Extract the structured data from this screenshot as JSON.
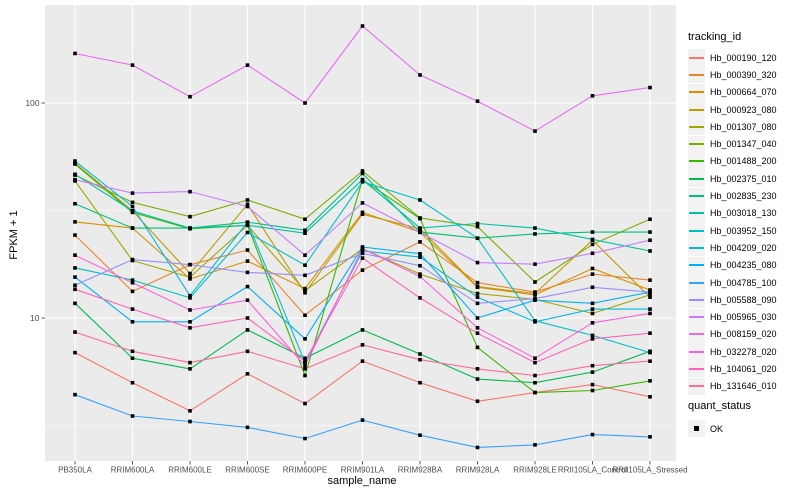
{
  "figure": {
    "background": "#FFFFFF",
    "panel_fill": "#EBEBEB",
    "grid_color": "#FFFFFF",
    "axis_text_color": "#4D4D4D",
    "tick_color": "#333333",
    "point_color": "#000000"
  },
  "legend": {
    "tracking_title": "tracking_id",
    "quant_title": "quant_status",
    "quant_items": [
      {
        "label": "OK",
        "marker": "filled-black-square"
      }
    ]
  },
  "chart_data": {
    "type": "line",
    "title": "",
    "xlabel": "sample_name",
    "ylabel": "FPKM + 1",
    "y_scale": "log10",
    "y_tick_labels": [
      "100",
      "10"
    ],
    "y_tick_values": [
      100,
      10
    ],
    "y_minor_values": [
      31.62,
      3.162
    ],
    "ylim": [
      2.2,
      290
    ],
    "grid": true,
    "legend_position": "right",
    "marker": "filled-square-black",
    "categories": [
      "PB350LA",
      "RRIM600LA",
      "RRIM600LE",
      "RRIM600SE",
      "RRIM600PE",
      "RRIM901LA",
      "RRIM928BA",
      "RRIM928LA",
      "RRIM928LE",
      "RRII105LA_Control",
      "RRII105LA_Stressed"
    ],
    "series": [
      {
        "name": "Hb_000190_120",
        "color": "#F8766D",
        "values": [
          6.9,
          5.0,
          3.7,
          5.5,
          4.0,
          6.3,
          5.0,
          4.1,
          4.5,
          4.9,
          4.3
        ]
      },
      {
        "name": "Hb_000390_320",
        "color": "#EA8331",
        "values": [
          24.3,
          13.3,
          17.7,
          20.7,
          10.3,
          16.7,
          22.6,
          14.6,
          13.2,
          16.0,
          15.0
        ]
      },
      {
        "name": "Hb_000664_070",
        "color": "#D89000",
        "values": [
          28.0,
          26.2,
          15.2,
          18.4,
          13.7,
          31.0,
          25.1,
          13.9,
          12.8,
          17.0,
          13.5
        ]
      },
      {
        "name": "Hb_000923_080",
        "color": "#C09B00",
        "values": [
          52.6,
          31.5,
          16.1,
          33.8,
          13.1,
          30.4,
          26.0,
          14.0,
          13.0,
          23.0,
          12.5
        ]
      },
      {
        "name": "Hb_001307_080",
        "color": "#A3A500",
        "values": [
          43.4,
          18.5,
          15.5,
          27.0,
          13.4,
          21.0,
          16.0,
          13.0,
          12.2,
          10.5,
          12.8
        ]
      },
      {
        "name": "Hb_001347_040",
        "color": "#7CAE00",
        "values": [
          46.2,
          34.5,
          29.6,
          35.4,
          28.8,
          48.3,
          29.2,
          26.6,
          14.7,
          22.0,
          28.8
        ]
      },
      {
        "name": "Hb_001488_200",
        "color": "#39B600",
        "values": [
          52.0,
          31.0,
          26.0,
          27.0,
          5.4,
          44.0,
          29.0,
          7.3,
          4.5,
          4.6,
          5.1
        ]
      },
      {
        "name": "Hb_002375_010",
        "color": "#00BB4E",
        "values": [
          11.7,
          6.5,
          5.8,
          8.8,
          6.5,
          8.8,
          6.8,
          5.2,
          5.0,
          5.6,
          7.0
        ]
      },
      {
        "name": "Hb_002835_230",
        "color": "#00BF7D",
        "values": [
          34.0,
          26.2,
          26.2,
          27.9,
          25.6,
          47.0,
          25.1,
          23.5,
          24.6,
          25.1,
          25.1
        ]
      },
      {
        "name": "Hb_003018_130",
        "color": "#00C1A3",
        "values": [
          46.6,
          31.5,
          26.2,
          27.0,
          24.8,
          44.0,
          26.2,
          27.5,
          26.2,
          23.2,
          20.5
        ]
      },
      {
        "name": "Hb_003952_150",
        "color": "#00BFC4",
        "values": [
          17.1,
          15.0,
          12.4,
          25.0,
          17.6,
          43.0,
          35.4,
          23.5,
          9.7,
          8.3,
          6.9
        ]
      },
      {
        "name": "Hb_004209_020",
        "color": "#00BAE0",
        "values": [
          53.7,
          33.0,
          12.7,
          27.9,
          6.2,
          20.5,
          19.2,
          12.5,
          9.6,
          11.0,
          11.0
        ]
      },
      {
        "name": "Hb_004235_080",
        "color": "#00B0F6",
        "values": [
          15.5,
          9.6,
          9.6,
          14.0,
          8.0,
          21.4,
          19.9,
          10.0,
          12.1,
          11.7,
          13.2
        ]
      },
      {
        "name": "Hb_004785_100",
        "color": "#35A2FF",
        "values": [
          4.4,
          3.5,
          3.3,
          3.1,
          2.75,
          3.35,
          2.85,
          2.5,
          2.57,
          2.87,
          2.8
        ]
      },
      {
        "name": "Hb_005588_090",
        "color": "#9590FF",
        "values": [
          14.2,
          18.7,
          17.7,
          16.3,
          15.8,
          20.0,
          17.5,
          11.7,
          12.3,
          13.9,
          13.2
        ]
      },
      {
        "name": "Hb_005965_030",
        "color": "#C77CFF",
        "values": [
          44.0,
          38.1,
          38.7,
          33.0,
          19.6,
          34.3,
          25.0,
          18.1,
          17.8,
          20.0,
          23.0
        ]
      },
      {
        "name": "Hb_008159_020",
        "color": "#E76BF3",
        "values": [
          170,
          150,
          107,
          150,
          100,
          228,
          135,
          102,
          74,
          108,
          118
        ]
      },
      {
        "name": "Hb_032278_020",
        "color": "#FA62DB",
        "values": [
          19.6,
          14.6,
          10.9,
          12.1,
          6.0,
          21.0,
          15.6,
          9.0,
          6.5,
          9.5,
          10.5
        ]
      },
      {
        "name": "Hb_104061_020",
        "color": "#FF62BC",
        "values": [
          13.6,
          11.0,
          9.0,
          10.0,
          6.3,
          19.0,
          12.4,
          8.5,
          6.2,
          8.0,
          8.5
        ]
      },
      {
        "name": "Hb_131646_010",
        "color": "#FF6A98",
        "values": [
          8.6,
          7.0,
          6.2,
          7.0,
          5.8,
          7.5,
          6.4,
          5.8,
          5.4,
          6.0,
          6.3
        ]
      }
    ]
  }
}
